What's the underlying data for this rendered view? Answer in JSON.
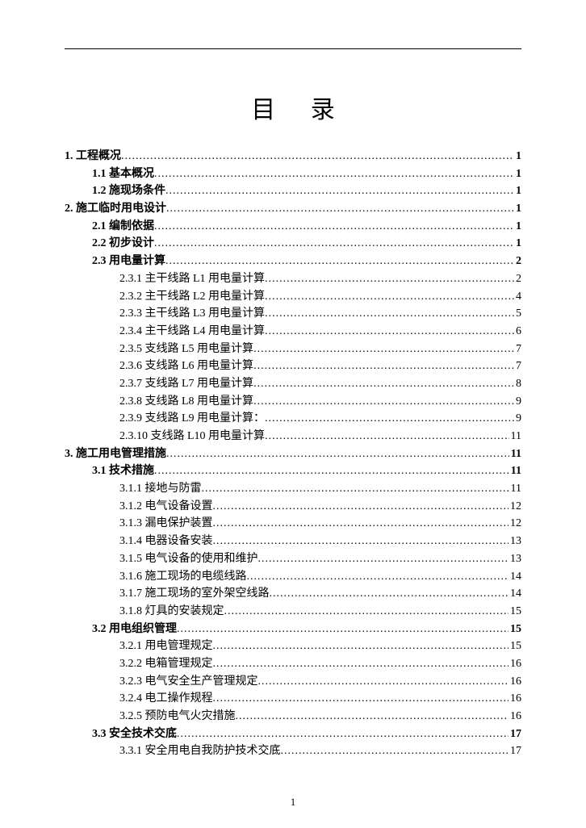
{
  "title": "目 录",
  "page_number": "1",
  "toc": [
    {
      "level": 1,
      "label": "1. 工程概况",
      "page": "1"
    },
    {
      "level": 2,
      "label": "1.1 基本概况",
      "page": "1"
    },
    {
      "level": 2,
      "label": "1.2 施现场条件",
      "page": "1"
    },
    {
      "level": 1,
      "label": "2. 施工临时用电设计",
      "page": "1"
    },
    {
      "level": 2,
      "label": "2.1 编制依据",
      "page": "1"
    },
    {
      "level": 2,
      "label": "2.2 初步设计",
      "page": "1"
    },
    {
      "level": 2,
      "label": "2.3 用电量计算",
      "page": "2"
    },
    {
      "level": 3,
      "label": "2.3.1 主干线路 L1 用电量计算",
      "page": "2"
    },
    {
      "level": 3,
      "label": "2.3.2 主干线路 L2 用电量计算",
      "page": "4"
    },
    {
      "level": 3,
      "label": "2.3.3 主干线路 L3 用电量计算",
      "page": "5"
    },
    {
      "level": 3,
      "label": "2.3.4 主干线路 L4 用电量计算",
      "page": "6"
    },
    {
      "level": 3,
      "label": "2.3.5 支线路 L5 用电量计算",
      "page": "7"
    },
    {
      "level": 3,
      "label": "2.3.6 支线路 L6 用电量计算",
      "page": "7"
    },
    {
      "level": 3,
      "label": "2.3.7 支线路 L7 用电量计算",
      "page": "8"
    },
    {
      "level": 3,
      "label": "2.3.8 支线路 L8 用电量计算",
      "page": "9"
    },
    {
      "level": 3,
      "label": "2.3.9 支线路 L9 用电量计算：",
      "page": "9"
    },
    {
      "level": 3,
      "label": "2.3.10 支线路 L10 用电量计算",
      "page": "11"
    },
    {
      "level": 1,
      "label": "3. 施工用电管理措施",
      "page": "11"
    },
    {
      "level": 2,
      "label": "3.1 技术措施",
      "page": "11"
    },
    {
      "level": 3,
      "label": "3.1.1 接地与防雷",
      "page": "11"
    },
    {
      "level": 3,
      "label": "3.1.2 电气设备设置",
      "page": "12"
    },
    {
      "level": 3,
      "label": "3.1.3 漏电保护装置",
      "page": "12"
    },
    {
      "level": 3,
      "label": "3.1.4 电器设备安装",
      "page": "13"
    },
    {
      "level": 3,
      "label": "3.1.5 电气设备的使用和维护",
      "page": "13"
    },
    {
      "level": 3,
      "label": "3.1.6 施工现场的电缆线路",
      "page": "14"
    },
    {
      "level": 3,
      "label": "3.1.7 施工现场的室外架空线路",
      "page": "14"
    },
    {
      "level": 3,
      "label": "3.1.8 灯具的安装规定",
      "page": "15"
    },
    {
      "level": 2,
      "label": "3.2 用电组织管理",
      "page": "15"
    },
    {
      "level": 3,
      "label": "3.2.1 用电管理规定",
      "page": "15"
    },
    {
      "level": 3,
      "label": "3.2.2 电箱管理规定",
      "page": "16"
    },
    {
      "level": 3,
      "label": "3.2.3 电气安全生产管理规定",
      "page": "16"
    },
    {
      "level": 3,
      "label": "3.2.4 电工操作规程",
      "page": "16"
    },
    {
      "level": 3,
      "label": "3.2.5 预防电气火灾措施",
      "page": "16"
    },
    {
      "level": 2,
      "label": "3.3 安全技术交底",
      "page": "17"
    },
    {
      "level": 3,
      "label": "3.3.1 安全用电自我防护技术交底",
      "page": "17"
    }
  ]
}
